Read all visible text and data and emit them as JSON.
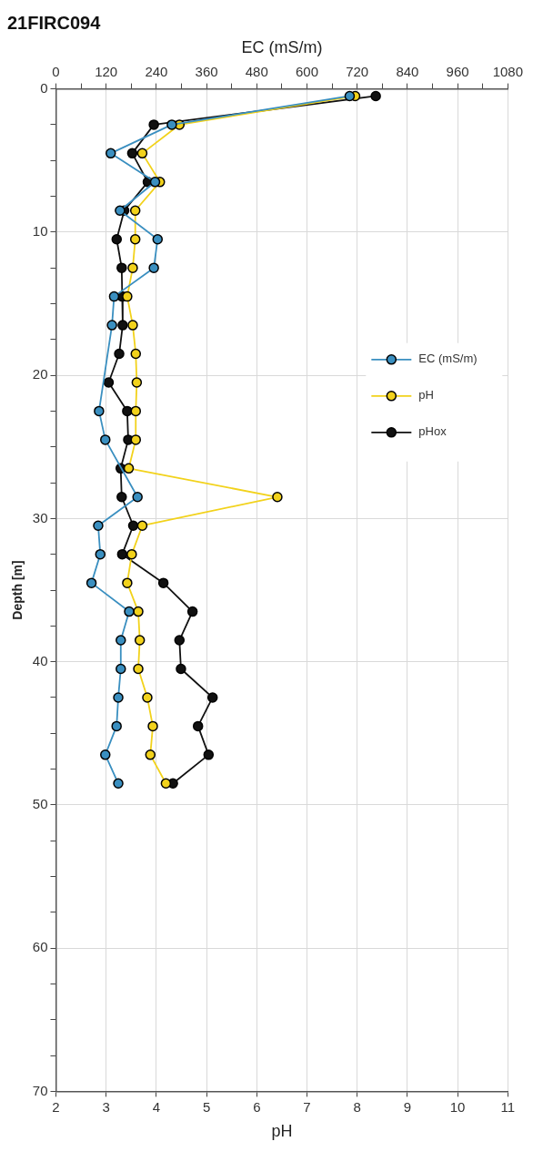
{
  "chart_data": {
    "type": "line",
    "title": "21FIRC094",
    "xlabel": "pH",
    "x2label": "EC (mS/m)",
    "ylabel": "Depth [m]",
    "xlim": [
      2,
      11
    ],
    "xticks": [
      2,
      3,
      4,
      5,
      6,
      7,
      8,
      9,
      10,
      11
    ],
    "x2lim": [
      0,
      1080
    ],
    "x2ticks": [
      0,
      {
        "value": 60,
        "label": null
      },
      120,
      {
        "value": 180,
        "label": null
      },
      240,
      {
        "value": 300,
        "label": null
      },
      360,
      {
        "value": 420,
        "label": null
      },
      480,
      {
        "value": 540,
        "label": null
      },
      600,
      {
        "value": 660,
        "label": null
      },
      720,
      {
        "value": 780,
        "label": null
      },
      840,
      {
        "value": 900,
        "label": null
      },
      960,
      {
        "value": 1020,
        "label": null
      },
      1080
    ],
    "ylim": [
      70,
      0
    ],
    "yticks": [
      0,
      {
        "value": 2.5,
        "label": null
      },
      {
        "value": 5,
        "label": null
      },
      {
        "value": 7.5,
        "label": null
      },
      10,
      {
        "value": 12.5,
        "label": null
      },
      {
        "value": 15,
        "label": null
      },
      {
        "value": 17.5,
        "label": null
      },
      20,
      {
        "value": 22.5,
        "label": null
      },
      {
        "value": 25,
        "label": null
      },
      {
        "value": 27.5,
        "label": null
      },
      30,
      {
        "value": 32.5,
        "label": null
      },
      {
        "value": 35,
        "label": null
      },
      {
        "value": 37.5,
        "label": null
      },
      40,
      {
        "value": 42.5,
        "label": null
      },
      {
        "value": 45,
        "label": null
      },
      {
        "value": 47.5,
        "label": null
      },
      50,
      {
        "value": 52.5,
        "label": null
      },
      {
        "value": 55,
        "label": null
      },
      {
        "value": 57.5,
        "label": null
      },
      60,
      {
        "value": 62.5,
        "label": null
      },
      {
        "value": 65,
        "label": null
      },
      {
        "value": 67.5,
        "label": null
      },
      70
    ],
    "grid": true,
    "legend": "right",
    "marker": "circle",
    "series": [
      {
        "name": "EC (mS/m)",
        "color": "#3a8fc0",
        "axis": "x2",
        "x": [
          702,
          277,
          131,
          237,
          153,
          243,
          234,
          139,
          134,
          null,
          null,
          103,
          118,
          null,
          195,
          101,
          106,
          85,
          175,
          155,
          155,
          149,
          145,
          118,
          149
        ],
        "values": [
          0.5,
          2.5,
          4.5,
          6.5,
          8.5,
          10.5,
          12.5,
          14.5,
          16.5,
          null,
          null,
          22.5,
          24.5,
          null,
          28.5,
          30.5,
          32.5,
          34.5,
          36.5,
          38.5,
          40.5,
          42.5,
          44.5,
          46.5,
          48.5
        ]
      },
      {
        "name": "pH",
        "color": "#f2d21b",
        "x": [
          7.96,
          4.46,
          3.72,
          4.07,
          3.58,
          3.58,
          3.53,
          3.42,
          3.53,
          3.59,
          3.61,
          3.59,
          3.59,
          3.45,
          6.41,
          3.72,
          3.51,
          3.42,
          3.64,
          3.67,
          3.64,
          3.82,
          3.93,
          3.88,
          4.19
        ],
        "values": [
          0.5,
          2.5,
          4.5,
          6.5,
          8.5,
          10.5,
          12.5,
          14.5,
          16.5,
          18.5,
          20.5,
          22.5,
          24.5,
          26.5,
          28.5,
          30.5,
          32.5,
          34.5,
          36.5,
          38.5,
          40.5,
          42.5,
          44.5,
          46.5,
          48.5
        ]
      },
      {
        "name": "pHox",
        "color": "#111111",
        "x": [
          8.37,
          3.95,
          3.52,
          3.83,
          3.36,
          3.21,
          3.31,
          3.32,
          3.33,
          3.26,
          3.05,
          3.42,
          3.44,
          3.29,
          3.31,
          3.54,
          3.32,
          4.14,
          4.72,
          4.46,
          4.49,
          5.12,
          4.83,
          5.04,
          4.33
        ],
        "values": [
          0.5,
          2.5,
          4.5,
          6.5,
          8.5,
          10.5,
          12.5,
          14.5,
          16.5,
          18.5,
          20.5,
          22.5,
          24.5,
          26.5,
          28.5,
          30.5,
          32.5,
          34.5,
          36.5,
          38.5,
          40.5,
          42.5,
          44.5,
          46.5,
          48.5
        ]
      }
    ]
  }
}
